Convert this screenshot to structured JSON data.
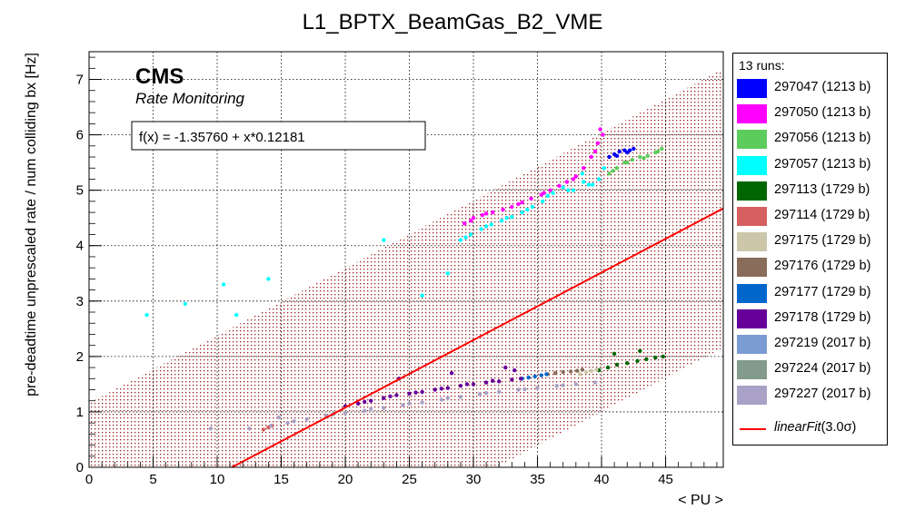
{
  "chart_data": {
    "type": "scatter",
    "title": "L1_BPTX_BeamGas_B2_VME",
    "xlabel": "< PU >",
    "ylabel": "pre-deadtime unprescaled rate / num colliding bx [Hz]",
    "xlim": [
      0,
      49.5
    ],
    "ylim": [
      0,
      7.5
    ],
    "x_ticks": [
      "0",
      "5",
      "10",
      "15",
      "20",
      "25",
      "30",
      "35",
      "40",
      "45"
    ],
    "y_ticks": [
      "0",
      "1",
      "2",
      "3",
      "4",
      "5",
      "6",
      "7"
    ],
    "grid": true,
    "legend_position": "right",
    "cms_label": "CMS",
    "cms_sublabel": "Rate Monitoring",
    "fit_box_text": "f(x) = -1.35760 + x*0.12181",
    "fit": {
      "intercept": -1.3576,
      "slope": 0.12181,
      "color": "#ff0000",
      "band_intercept_lower": -3.87,
      "band_intercept_upper": 1.16
    },
    "legend_header": "13 runs:",
    "fit_legend_label": "linearFit",
    "fit_legend_suffix": "(3.0σ)",
    "series": [
      {
        "name": "297047 (1213 b)",
        "color": "#0000ff",
        "x": [
          40.6,
          41.0,
          41.4,
          41.8,
          42.2,
          42.5,
          42.0,
          41.2
        ],
        "y": [
          5.6,
          5.65,
          5.7,
          5.72,
          5.72,
          5.75,
          5.68,
          5.62
        ]
      },
      {
        "name": "297050 (1213 b)",
        "color": "#ff00ff",
        "x": [
          29.3,
          30.0,
          30.7,
          31.5,
          32.3,
          33.0,
          33.8,
          34.5,
          35.3,
          36.0,
          36.7,
          37.3,
          38.0,
          38.6,
          39.2,
          39.7,
          39.9,
          40.1,
          29.8,
          31.0,
          33.5,
          35.5,
          37.8,
          39.5
        ],
        "y": [
          4.4,
          4.5,
          4.55,
          4.6,
          4.65,
          4.7,
          4.78,
          4.85,
          4.92,
          5.0,
          5.08,
          5.15,
          5.25,
          5.4,
          5.6,
          5.85,
          6.1,
          6.0,
          4.45,
          4.58,
          4.75,
          4.95,
          5.2,
          5.7
        ]
      },
      {
        "name": "297056 (1213 b)",
        "color": "#5ccc5c",
        "x": [
          40.6,
          41.2,
          41.8,
          42.4,
          43.0,
          43.6,
          44.2,
          44.7,
          40.9,
          42.0,
          43.3,
          44.4
        ],
        "y": [
          5.3,
          5.4,
          5.5,
          5.55,
          5.6,
          5.62,
          5.68,
          5.75,
          5.35,
          5.5,
          5.58,
          5.7
        ]
      },
      {
        "name": "297057 (1213 b)",
        "color": "#00ffff",
        "x": [
          29.0,
          29.8,
          30.6,
          31.4,
          32.2,
          33.0,
          33.8,
          34.6,
          35.4,
          36.2,
          37.0,
          37.8,
          38.6,
          39.3,
          39.8,
          40.2,
          29.4,
          31.0,
          32.6,
          34.2,
          35.8,
          37.4,
          39.0,
          4.5,
          7.5,
          10.5,
          11.5,
          14.0,
          23.0,
          26.0,
          28.0,
          38.5
        ],
        "y": [
          4.1,
          4.2,
          4.3,
          4.38,
          4.45,
          4.52,
          4.6,
          4.7,
          4.8,
          4.95,
          5.05,
          5.0,
          5.15,
          5.1,
          5.2,
          5.4,
          4.15,
          4.35,
          4.5,
          4.65,
          4.9,
          5.0,
          5.1,
          2.75,
          2.95,
          3.3,
          2.75,
          3.4,
          4.1,
          3.1,
          3.5,
          5.3
        ]
      },
      {
        "name": "297113 (1729 b)",
        "color": "#006600",
        "x": [
          39.8,
          40.5,
          41.2,
          42.0,
          42.8,
          43.5,
          44.2,
          44.8,
          41.0,
          43.0
        ],
        "y": [
          1.75,
          1.8,
          1.85,
          1.88,
          1.92,
          1.95,
          1.98,
          2.0,
          2.05,
          2.1
        ]
      },
      {
        "name": "297114 (1729 b)",
        "color": "#d65f5f",
        "x": [
          13.6,
          14.0,
          14.3
        ],
        "y": [
          0.68,
          0.72,
          0.75
        ]
      },
      {
        "name": "297175 (1729 b)",
        "color": "#ccc7aa",
        "x": [
          38.3,
          38.8,
          39.2,
          39.6
        ],
        "y": [
          1.68,
          1.72,
          1.74,
          1.76
        ]
      },
      {
        "name": "297176 (1729 b)",
        "color": "#8a6c5a",
        "x": [
          35.8,
          36.4,
          37.0,
          37.6,
          38.1,
          38.5
        ],
        "y": [
          1.68,
          1.7,
          1.72,
          1.73,
          1.74,
          1.76
        ]
      },
      {
        "name": "297177 (1729 b)",
        "color": "#0066cc",
        "x": [
          33.8,
          34.3,
          34.8,
          35.3,
          35.7
        ],
        "y": [
          1.6,
          1.62,
          1.64,
          1.66,
          1.68
        ]
      },
      {
        "name": "297178 (1729 b)",
        "color": "#660099",
        "x": [
          20.0,
          21.0,
          22.0,
          23.0,
          24.0,
          25.0,
          26.0,
          27.0,
          28.0,
          29.0,
          30.0,
          31.0,
          32.0,
          33.0,
          33.7,
          21.5,
          23.5,
          25.5,
          27.5,
          29.5,
          31.5,
          33.2,
          24.2,
          28.3,
          32.5
        ],
        "y": [
          1.1,
          1.15,
          1.2,
          1.25,
          1.3,
          1.33,
          1.36,
          1.4,
          1.43,
          1.47,
          1.5,
          1.53,
          1.55,
          1.58,
          1.6,
          1.18,
          1.28,
          1.35,
          1.42,
          1.5,
          1.56,
          1.75,
          1.6,
          1.7,
          1.8
        ]
      },
      {
        "name": "297219 (2017 b)",
        "color": "#7b9bd4",
        "x": [],
        "y": []
      },
      {
        "name": "297224 (2017 b)",
        "color": "#829b8a",
        "x": [],
        "y": []
      },
      {
        "name": "297227 (2017 b)",
        "color": "#a9a2c6",
        "x": [
          14.2,
          15.5,
          17.0,
          18.5,
          20.0,
          21.5,
          23.0,
          24.5,
          26.0,
          27.5,
          29.0,
          30.5,
          32.0,
          33.5,
          35.0,
          36.5,
          38.0,
          39.5,
          16.0,
          19.0,
          22.0,
          25.0,
          28.0,
          31.0,
          34.0,
          37.0,
          9.5,
          12.5,
          14.8
        ],
        "y": [
          0.75,
          0.8,
          0.87,
          0.93,
          0.98,
          1.02,
          1.07,
          1.12,
          1.17,
          1.22,
          1.27,
          1.32,
          1.36,
          1.4,
          1.43,
          1.47,
          1.5,
          1.53,
          0.83,
          0.95,
          1.05,
          1.15,
          1.25,
          1.34,
          1.41,
          1.48,
          0.7,
          0.7,
          0.9
        ]
      }
    ]
  }
}
